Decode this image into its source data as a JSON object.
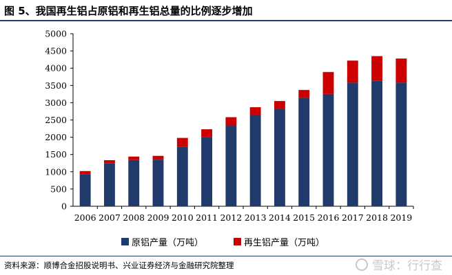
{
  "figure": {
    "title": "图 5、我国再生铝占原铝和再生铝总量的比例逐步增加",
    "source": "资料来源：顺博合金招股说明书、兴业证券经济与金融研究院整理",
    "watermark": "雪球：行行查"
  },
  "chart_data": {
    "type": "bar",
    "stacked": true,
    "categories": [
      "2006",
      "2007",
      "2008",
      "2009",
      "2010",
      "2011",
      "2012",
      "2013",
      "2014",
      "2015",
      "2016",
      "2017",
      "2018",
      "2019"
    ],
    "series": [
      {
        "name": "原铝产量（万吨）",
        "color": "#1f3a6b",
        "values": [
          930,
          1240,
          1340,
          1350,
          1720,
          2000,
          2340,
          2650,
          2820,
          3140,
          3250,
          3580,
          3630,
          3580
        ]
      },
      {
        "name": "再生铝产量（万吨）",
        "color": "#cc0000",
        "values": [
          90,
          95,
          100,
          110,
          260,
          230,
          240,
          220,
          230,
          230,
          640,
          640,
          720,
          700
        ]
      }
    ],
    "ylim": [
      0,
      5000
    ],
    "yticks": [
      0,
      500,
      1000,
      1500,
      2000,
      2500,
      3000,
      3500,
      4000,
      4500,
      5000
    ],
    "xlabel": "",
    "ylabel": "",
    "grid": false,
    "legend_position": "bottom"
  }
}
